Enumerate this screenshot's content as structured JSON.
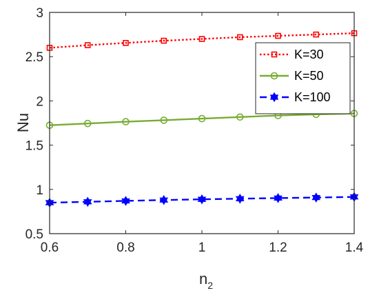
{
  "chart_data": {
    "type": "line",
    "xlabel": {
      "base": "n",
      "subscript": "2"
    },
    "ylabel": "Nu",
    "xlim": [
      0.6,
      1.4
    ],
    "ylim": [
      0.5,
      3
    ],
    "xticks": [
      0.6,
      0.8,
      1,
      1.2,
      1.4
    ],
    "xtick_labels": [
      "0.6",
      "0.8",
      "1",
      "1.2",
      "1.4"
    ],
    "yticks": [
      0.5,
      1,
      1.5,
      2,
      2.5,
      3
    ],
    "ytick_labels": [
      "0.5",
      "1",
      "1.5",
      "2",
      "2.5",
      "3"
    ],
    "grid": false,
    "legend_position": "top-right",
    "x": [
      0.6,
      0.7,
      0.8,
      0.9,
      1.0,
      1.1,
      1.2,
      1.3,
      1.4
    ],
    "series": [
      {
        "name": "K=30",
        "color": "#ff0000",
        "line_style": "dotted",
        "marker": "square",
        "values": [
          2.6,
          2.63,
          2.655,
          2.68,
          2.7,
          2.72,
          2.735,
          2.75,
          2.765
        ]
      },
      {
        "name": "K=50",
        "color": "#77ac30",
        "line_style": "solid",
        "marker": "circle",
        "values": [
          1.725,
          1.745,
          1.765,
          1.782,
          1.8,
          1.818,
          1.835,
          1.848,
          1.858
        ]
      },
      {
        "name": "K=100",
        "color": "#0000ff",
        "line_style": "dashed",
        "marker": "hexagram",
        "values": [
          0.85,
          0.86,
          0.87,
          0.88,
          0.888,
          0.895,
          0.902,
          0.908,
          0.915
        ]
      }
    ]
  }
}
